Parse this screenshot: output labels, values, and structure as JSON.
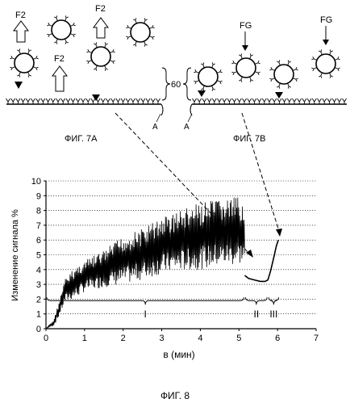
{
  "top": {
    "labels": {
      "f2_1": "F2",
      "f2_2": "F2",
      "f2_3": "F2",
      "fg_1": "FG",
      "fg_2": "FG",
      "gap": "60",
      "a_left": "A",
      "a_right": "A",
      "fig7a": "ФИГ. 7А",
      "fig7b": "ФИГ. 7В"
    }
  },
  "chart_data": {
    "type": "line",
    "title": "",
    "xlabel": "в (мин)",
    "ylabel": "Изменение сигнала %",
    "xlim": [
      0,
      7
    ],
    "ylim": [
      0,
      10
    ],
    "x_ticks": [
      "0",
      "1",
      "2",
      "3",
      "4",
      "5",
      "6",
      "7"
    ],
    "y_ticks": [
      "0",
      "1",
      "2",
      "3",
      "4",
      "5",
      "6",
      "7",
      "8",
      "9",
      "10"
    ],
    "grid": "horizontal dotted",
    "phases": [
      {
        "label": "I",
        "x_start": 0.0,
        "x_end": 5.15
      },
      {
        "label": "II",
        "x_start": 5.15,
        "x_end": 5.75
      },
      {
        "label": "III",
        "x_start": 5.75,
        "x_end": 6.05
      }
    ],
    "envelope": {
      "x": [
        0.0,
        0.2,
        0.3,
        0.5,
        0.8,
        1.0,
        1.5,
        2.0,
        2.5,
        3.0,
        3.5,
        4.0,
        4.5,
        5.0,
        5.15
      ],
      "upper": [
        0.0,
        0.6,
        1.5,
        3.4,
        4.3,
        4.6,
        5.3,
        6.3,
        6.8,
        7.6,
        8.1,
        8.5,
        8.8,
        8.9,
        8.6
      ],
      "lower": [
        0.0,
        0.2,
        0.6,
        1.8,
        2.1,
        2.5,
        2.8,
        3.0,
        3.3,
        3.7,
        3.9,
        4.0,
        4.2,
        4.3,
        4.5
      ]
    },
    "tail": {
      "x": [
        5.15,
        5.25,
        5.4,
        5.55,
        5.68,
        5.75,
        5.82,
        5.9,
        5.97,
        6.02
      ],
      "y": [
        3.6,
        3.4,
        3.3,
        3.2,
        3.2,
        3.3,
        3.9,
        4.8,
        5.6,
        6.0
      ]
    }
  },
  "caption": "ФИГ. 8"
}
